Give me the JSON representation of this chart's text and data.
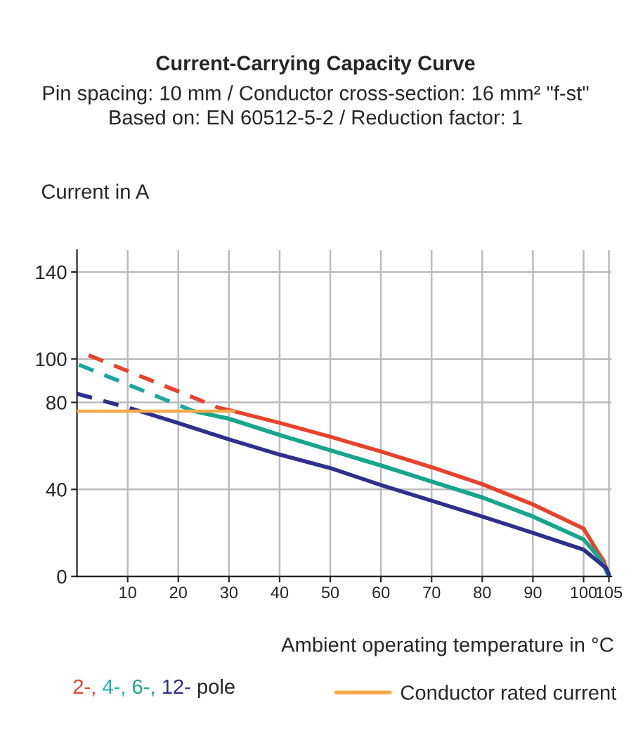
{
  "chart_data": {
    "type": "line",
    "title": "Current-Carrying Capacity Curve",
    "subtitle": "Pin spacing: 10 mm / Conductor cross-section: 16 mm² \"f-st\"\nBased on: EN 60512-5-2 / Reduction factor: 1",
    "xlabel": "Ambient operating temperature in °C",
    "ylabel": "Current in A",
    "legend_title": "pole",
    "series": [
      {
        "name": "2-,",
        "color": "#e8412c",
        "x": [
          28,
          30,
          40,
          50,
          60,
          70,
          80,
          90,
          100,
          102.6,
          104,
          105
        ],
        "values": [
          77.5,
          76.5,
          70.6,
          64.2,
          57.4,
          50.2,
          42.4,
          33.1,
          22,
          12,
          7,
          0
        ]
      },
      {
        "color": "#e8412c",
        "line_style": "dashed",
        "x": [
          2.3,
          28
        ],
        "values": [
          101.7,
          77.5
        ]
      },
      {
        "name": "4-,",
        "color": "#1fb0b0",
        "x": [
          23,
          30,
          40,
          50,
          60,
          70,
          80,
          90,
          100,
          102.6,
          104,
          105
        ],
        "values": [
          76,
          72.5,
          65,
          58,
          51,
          43.6,
          36.3,
          27.5,
          17,
          10,
          5,
          0
        ]
      },
      {
        "name": "6-,",
        "color": "#18a58a",
        "x": [
          23,
          30,
          40,
          50,
          60,
          70,
          80,
          90,
          100,
          102.6,
          104,
          105
        ],
        "values": [
          76,
          72.5,
          65,
          58,
          51,
          43.6,
          36.3,
          27.5,
          17,
          10,
          5,
          0
        ]
      },
      {
        "color": "#18a8a0",
        "line_style": "dashed",
        "x": [
          0.4,
          23
        ],
        "values": [
          97.3,
          76
        ]
      },
      {
        "name": "12-",
        "color": "#2e2f8c",
        "x": [
          11,
          20,
          30,
          40,
          50,
          60,
          70,
          80,
          90,
          100,
          104.5,
          105
        ],
        "values": [
          77,
          70.5,
          63,
          56,
          49.8,
          42,
          34.8,
          27.5,
          20,
          12.3,
          3.7,
          1
        ]
      },
      {
        "color": "#2e2f8c",
        "line_style": "dashed",
        "x": [
          0,
          11
        ],
        "values": [
          84,
          77
        ]
      },
      {
        "name": "Conductor rated current",
        "color": "#f5a94a",
        "x": [
          0,
          31
        ],
        "values": [
          76,
          76
        ]
      }
    ],
    "xlim": [
      0,
      105.5
    ],
    "xticks": [
      10,
      20,
      30,
      40,
      50,
      60,
      70,
      80,
      90,
      100,
      105
    ],
    "ylim": [
      0,
      150
    ],
    "yticks": [
      0,
      40,
      80,
      100,
      140
    ],
    "grid": true,
    "legend": "bottom",
    "line_style": "solid",
    "marker": "none"
  }
}
